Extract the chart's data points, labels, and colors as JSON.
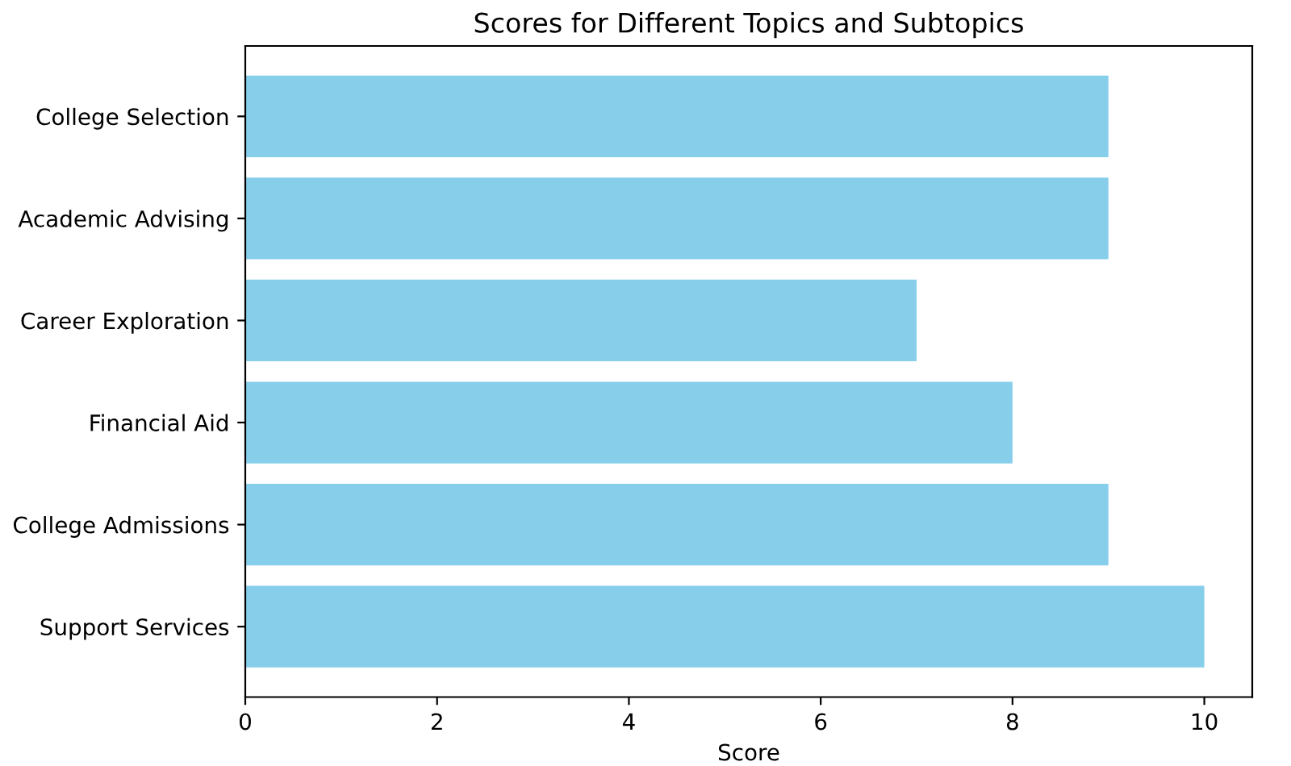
{
  "chart_data": {
    "type": "bar",
    "orientation": "horizontal",
    "title": "Scores for Different Topics and Subtopics",
    "xlabel": "Score",
    "categories": [
      "College Selection",
      "Academic Advising",
      "Career Exploration",
      "Financial Aid",
      "College Admissions",
      "Support Services"
    ],
    "values": [
      9,
      9,
      7,
      8,
      9,
      10
    ],
    "color": "#87ceeb",
    "xlim": [
      0,
      10.5
    ],
    "xticks": [
      0,
      2,
      4,
      6,
      8,
      10
    ],
    "grid": false
  }
}
